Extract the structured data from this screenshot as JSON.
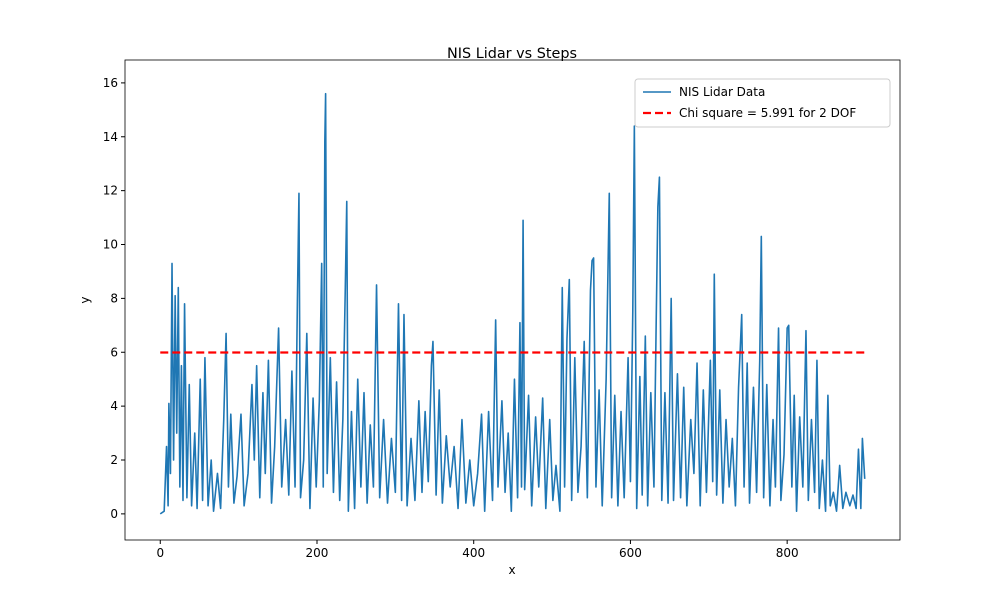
{
  "chart_data": {
    "type": "line",
    "title": "NIS Lidar vs Steps",
    "xlabel": "x",
    "ylabel": "y",
    "xlim": [
      -45,
      944
    ],
    "ylim": [
      -0.97,
      16.85
    ],
    "xticks": [
      0,
      200,
      400,
      600,
      800
    ],
    "yticks": [
      0,
      2,
      4,
      6,
      8,
      10,
      12,
      14,
      16
    ],
    "legend": "upper right",
    "series": [
      {
        "name": "NIS Lidar Data",
        "color": "#1f77b4",
        "dash": "solid",
        "x": [
          0,
          5,
          8,
          10,
          11,
          13,
          15,
          17,
          19,
          21,
          23,
          25,
          27,
          29,
          31,
          34,
          37,
          40,
          44,
          47,
          51,
          54,
          57,
          61,
          65,
          68,
          73,
          77,
          81,
          84,
          87,
          90,
          94,
          98,
          103,
          107,
          112,
          117,
          120,
          123,
          127,
          131,
          134,
          138,
          142,
          146,
          151,
          155,
          160,
          164,
          168,
          172,
          175,
          177,
          179,
          183,
          187,
          191,
          195,
          199,
          203,
          206,
          208,
          210,
          211,
          213,
          217,
          221,
          225,
          229,
          233,
          236,
          238,
          240,
          244,
          248,
          252,
          256,
          260,
          264,
          268,
          272,
          276,
          280,
          285,
          290,
          295,
          300,
          304,
          308,
          311,
          315,
          320,
          325,
          330,
          334,
          338,
          342,
          346,
          348,
          352,
          356,
          360,
          365,
          370,
          375,
          380,
          385,
          390,
          395,
          400,
          405,
          410,
          414,
          419,
          424,
          428,
          431,
          436,
          440,
          444,
          448,
          452,
          456,
          459,
          461,
          463,
          465,
          470,
          474,
          479,
          483,
          488,
          492,
          497,
          501,
          505,
          510,
          513,
          516,
          519,
          522,
          525,
          529,
          533,
          537,
          541,
          545,
          549,
          551,
          553,
          556,
          560,
          564,
          569,
          573,
          576,
          580,
          584,
          588,
          592,
          597,
          600,
          603,
          605,
          608,
          612,
          615,
          619,
          622,
          626,
          630,
          633,
          635,
          637,
          640,
          644,
          648,
          652,
          655,
          660,
          664,
          668,
          672,
          677,
          681,
          685,
          689,
          693,
          697,
          702,
          705,
          707,
          710,
          714,
          718,
          722,
          726,
          730,
          734,
          738,
          742,
          745,
          749,
          752,
          757,
          761,
          765,
          767,
          770,
          774,
          778,
          782,
          785,
          789,
          792,
          796,
          800,
          802,
          806,
          809,
          812,
          816,
          820,
          824,
          827,
          831,
          835,
          838,
          841,
          845,
          849,
          852,
          855,
          859,
          863,
          867,
          871,
          875,
          880,
          884,
          888,
          891,
          894,
          896,
          899
        ],
        "values": [
          0,
          0.1,
          2.5,
          0.3,
          4.1,
          1.5,
          9.3,
          2,
          8.1,
          3,
          8.4,
          1,
          5.5,
          0.5,
          7.8,
          0.6,
          4.8,
          0.3,
          3.0,
          0.2,
          5,
          0.5,
          5.8,
          0.3,
          2,
          0.1,
          1.5,
          0.2,
          3.5,
          6.7,
          1,
          3.7,
          0.4,
          1.4,
          3.7,
          0.3,
          1.5,
          4.8,
          2,
          5.5,
          0.6,
          4.5,
          1.5,
          5.7,
          0.4,
          2.5,
          6.9,
          1,
          3.5,
          0.7,
          5.3,
          1,
          7.9,
          11.9,
          0.6,
          2,
          6.7,
          0.2,
          4.3,
          1,
          4.2,
          9.3,
          1,
          13.8,
          15.6,
          1.5,
          5.8,
          0.8,
          4.9,
          0.5,
          3.5,
          8.2,
          11.6,
          0.1,
          3.8,
          0.2,
          5,
          1,
          4.5,
          0.4,
          3.3,
          1,
          8.5,
          0.6,
          3.5,
          0.4,
          2.8,
          0.8,
          7.8,
          0.5,
          7.4,
          0.3,
          2.8,
          0.5,
          4.2,
          0.8,
          3.8,
          1.2,
          5.5,
          6.4,
          0.7,
          4.6,
          0.4,
          2.9,
          1,
          2.5,
          0.2,
          3.5,
          0.4,
          2,
          0.3,
          1.5,
          3.7,
          0.1,
          3.8,
          0.5,
          7.2,
          1,
          4.2,
          0.8,
          3,
          0.1,
          5,
          0.6,
          7.1,
          1,
          10.9,
          0.9,
          4.4,
          0.3,
          3.6,
          1,
          4.3,
          0.2,
          3.5,
          0.5,
          1.8,
          0.1,
          8.4,
          1,
          6.5,
          8.7,
          0.5,
          5.8,
          0.8,
          2.5,
          6.4,
          0.6,
          8.3,
          9.4,
          9.5,
          1,
          4.6,
          0.3,
          5,
          11.9,
          0.6,
          4.4,
          0.3,
          3.8,
          0.6,
          5.8,
          1.2,
          7.5,
          14.4,
          0.2,
          5.1,
          0.7,
          6.6,
          0.3,
          4.5,
          1,
          7.4,
          11.4,
          12.5,
          0.5,
          4.5,
          0.4,
          8.0,
          0.5,
          5.2,
          0.6,
          4.7,
          0.3,
          3.5,
          1.5,
          5.6,
          0.3,
          4.6,
          0.8,
          5.7,
          1.2,
          8.9,
          0.7,
          4.6,
          0.4,
          3.5,
          1,
          2.8,
          0.3,
          4.7,
          7.4,
          1,
          5.6,
          0.4,
          4.7,
          0.8,
          5.7,
          10.3,
          0.6,
          4.8,
          0.3,
          3.5,
          1,
          6.9,
          0.5,
          2.2,
          6.9,
          7,
          1,
          4.4,
          0.1,
          3.6,
          1,
          6.8,
          0.5,
          3.5,
          0.8,
          5.7,
          0.2,
          2,
          0.1,
          4.4,
          0.3,
          0.8,
          0.1,
          1.8,
          0.2,
          0.8,
          0.3,
          0.7,
          0.2,
          2.4,
          0.2,
          2.8,
          1.3
        ]
      },
      {
        "name": "Chi square = 5.991 for 2 DOF",
        "color": "#ff0000",
        "dash": "dashed",
        "x": [
          0,
          899
        ],
        "values": [
          5.991,
          5.991
        ]
      }
    ]
  }
}
